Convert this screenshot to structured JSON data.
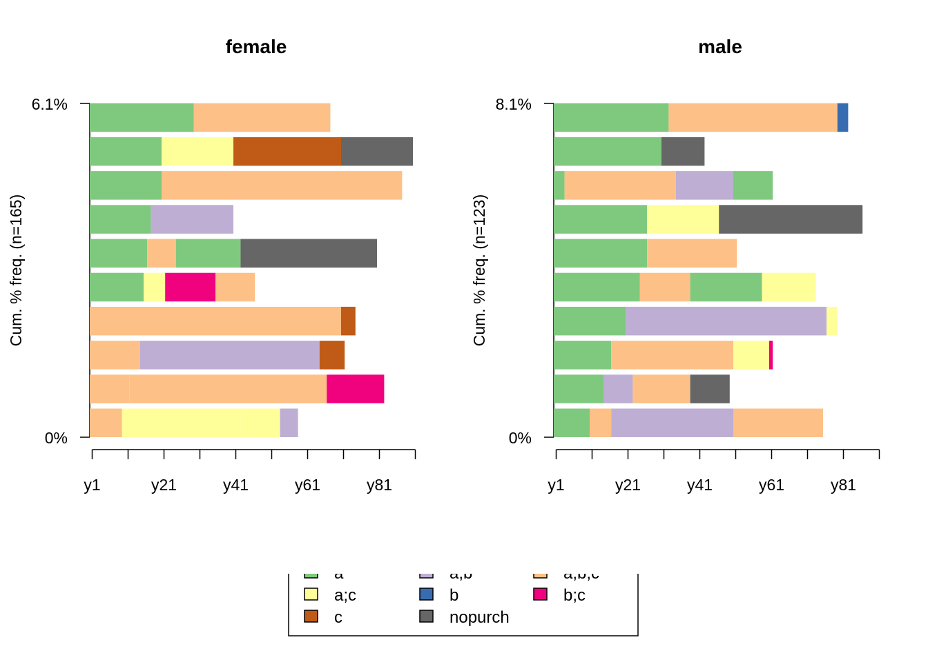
{
  "chart_data": [
    {
      "type": "bar",
      "subtype": "sequence-index",
      "title": "female",
      "ylabel": "Cum. % freq. (n=165)",
      "y_ticks": [
        "0%",
        "6.1%"
      ],
      "x_ticks": [
        "y1",
        "y21",
        "y41",
        "y61",
        "y81"
      ],
      "xlim": [
        1,
        91
      ],
      "sequences": [
        [
          {
            "state": "a;b;c",
            "start": 1,
            "end": 10
          },
          {
            "state": "a;c",
            "start": 10,
            "end": 21
          },
          {
            "state": "a;c",
            "start": 21,
            "end": 43
          },
          {
            "state": "a;c",
            "start": 43,
            "end": 54
          },
          {
            "state": "a;b",
            "start": 54,
            "end": 59
          }
        ],
        [
          {
            "state": "a;b;c",
            "start": 1,
            "end": 12
          },
          {
            "state": "a;b;c",
            "start": 12,
            "end": 67
          },
          {
            "state": "b;c",
            "start": 67,
            "end": 83
          }
        ],
        [
          {
            "state": "a;b;c",
            "start": 1,
            "end": 15
          },
          {
            "state": "a;b",
            "start": 15,
            "end": 65
          },
          {
            "state": "c",
            "start": 65,
            "end": 72
          }
        ],
        [
          {
            "state": "a;b;c",
            "start": 1,
            "end": 16
          },
          {
            "state": "a;b;c",
            "start": 16,
            "end": 71
          },
          {
            "state": "c",
            "start": 71,
            "end": 75
          }
        ],
        [
          {
            "state": "a",
            "start": 1,
            "end": 16
          },
          {
            "state": "a;c",
            "start": 16,
            "end": 22
          },
          {
            "state": "b;c",
            "start": 22,
            "end": 36
          },
          {
            "state": "a;b;c",
            "start": 36,
            "end": 47
          }
        ],
        [
          {
            "state": "a",
            "start": 1,
            "end": 17
          },
          {
            "state": "a;b;c",
            "start": 17,
            "end": 25
          },
          {
            "state": "a",
            "start": 25,
            "end": 43
          },
          {
            "state": "nopurch",
            "start": 43,
            "end": 81
          }
        ],
        [
          {
            "state": "a",
            "start": 1,
            "end": 18
          },
          {
            "state": "a;b",
            "start": 18,
            "end": 41
          }
        ],
        [
          {
            "state": "a",
            "start": 1,
            "end": 21
          },
          {
            "state": "a;b;c",
            "start": 21,
            "end": 88
          }
        ],
        [
          {
            "state": "a",
            "start": 1,
            "end": 21
          },
          {
            "state": "a;c",
            "start": 21,
            "end": 41
          },
          {
            "state": "c",
            "start": 41,
            "end": 71
          },
          {
            "state": "nopurch",
            "start": 71,
            "end": 91
          }
        ],
        [
          {
            "state": "a",
            "start": 1,
            "end": 30
          },
          {
            "state": "a;b;c",
            "start": 30,
            "end": 68
          }
        ]
      ]
    },
    {
      "type": "bar",
      "subtype": "sequence-index",
      "title": "male",
      "ylabel": "Cum. % freq. (n=123)",
      "y_ticks": [
        "0%",
        "8.1%"
      ],
      "x_ticks": [
        "y1",
        "y21",
        "y41",
        "y61",
        "y81"
      ],
      "xlim": [
        1,
        91
      ],
      "sequences": [
        [
          {
            "state": "a",
            "start": 1,
            "end": 11
          },
          {
            "state": "a;b;c",
            "start": 11,
            "end": 17
          },
          {
            "state": "a;b",
            "start": 17,
            "end": 51
          },
          {
            "state": "a;b;c",
            "start": 51,
            "end": 76
          }
        ],
        [
          {
            "state": "a",
            "start": 1,
            "end": 15
          },
          {
            "state": "a;b",
            "start": 15,
            "end": 23
          },
          {
            "state": "a;b;c",
            "start": 23,
            "end": 39
          },
          {
            "state": "nopurch",
            "start": 39,
            "end": 50
          }
        ],
        [
          {
            "state": "a",
            "start": 1,
            "end": 17
          },
          {
            "state": "a;b;c",
            "start": 17,
            "end": 51
          },
          {
            "state": "a;c",
            "start": 51,
            "end": 61
          },
          {
            "state": "b;c",
            "start": 61,
            "end": 62
          }
        ],
        [
          {
            "state": "a",
            "start": 1,
            "end": 21
          },
          {
            "state": "a;b",
            "start": 21,
            "end": 77
          },
          {
            "state": "a;c",
            "start": 77,
            "end": 80
          }
        ],
        [
          {
            "state": "a",
            "start": 1,
            "end": 25
          },
          {
            "state": "a;b;c",
            "start": 25,
            "end": 39
          },
          {
            "state": "a",
            "start": 39,
            "end": 59
          },
          {
            "state": "a;c",
            "start": 59,
            "end": 74
          }
        ],
        [
          {
            "state": "a",
            "start": 1,
            "end": 27
          },
          {
            "state": "a;b;c",
            "start": 27,
            "end": 52
          }
        ],
        [
          {
            "state": "a",
            "start": 1,
            "end": 27
          },
          {
            "state": "a;c",
            "start": 27,
            "end": 47
          },
          {
            "state": "nopurch",
            "start": 47,
            "end": 87
          }
        ],
        [
          {
            "state": "a",
            "start": 1,
            "end": 4
          },
          {
            "state": "a;b;c",
            "start": 4,
            "end": 35
          },
          {
            "state": "a;b",
            "start": 35,
            "end": 51
          },
          {
            "state": "a",
            "start": 51,
            "end": 62
          }
        ],
        [
          {
            "state": "a",
            "start": 1,
            "end": 31
          },
          {
            "state": "nopurch",
            "start": 31,
            "end": 43
          }
        ],
        [
          {
            "state": "a",
            "start": 1,
            "end": 33
          },
          {
            "state": "a;b;c",
            "start": 33,
            "end": 80
          },
          {
            "state": "b",
            "start": 80,
            "end": 83
          }
        ]
      ]
    }
  ],
  "legend": {
    "items": [
      {
        "label": "a",
        "color": "#7FC97F"
      },
      {
        "label": "a;c",
        "color": "#FFFF99"
      },
      {
        "label": "c",
        "color": "#BF5B17"
      },
      {
        "label": "a;b",
        "color": "#BEAED4"
      },
      {
        "label": "b",
        "color": "#386CB0"
      },
      {
        "label": "nopurch",
        "color": "#666666"
      },
      {
        "label": "a;b;c",
        "color": "#FDC086"
      },
      {
        "label": "b;c",
        "color": "#F0027F"
      }
    ]
  }
}
